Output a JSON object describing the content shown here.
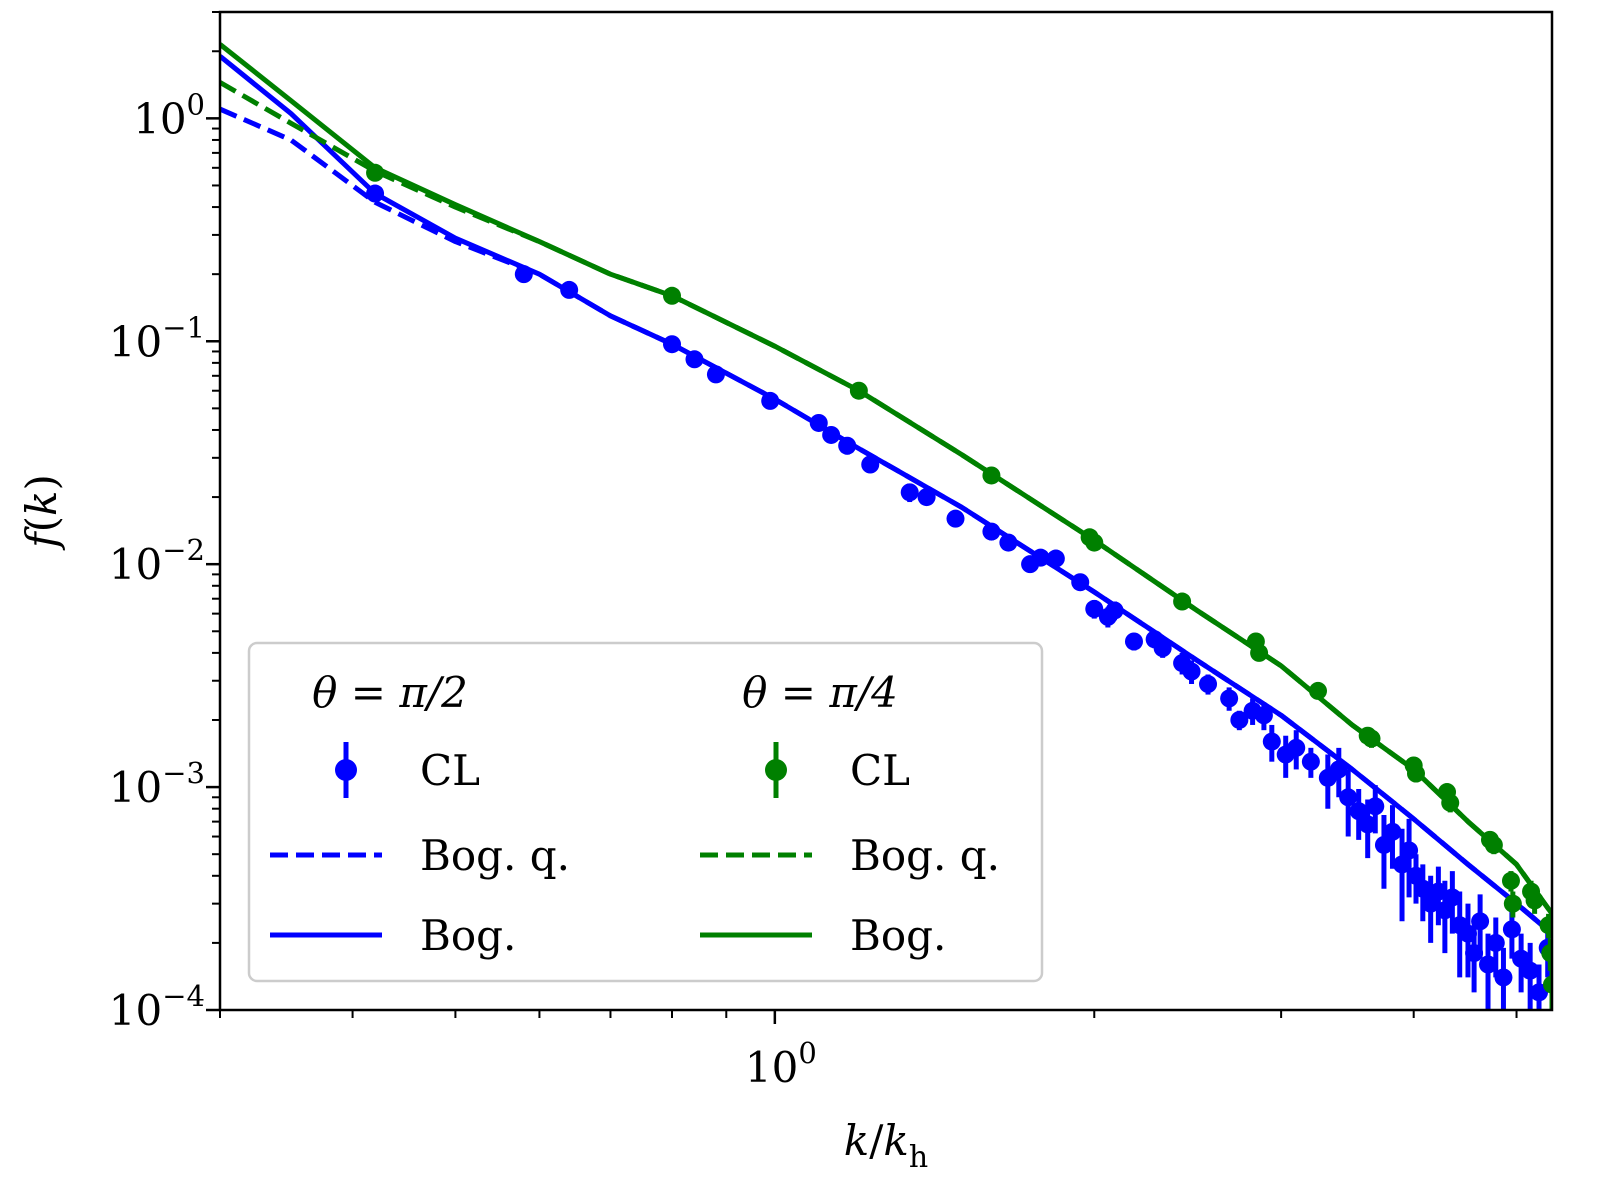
{
  "chart_data": {
    "type": "scatter",
    "title": "",
    "xlabel": "k/k_h",
    "ylabel": "f(k)",
    "xscale": "log",
    "yscale": "log",
    "xlim": [
      0.3,
      5.4
    ],
    "ylim": [
      0.0001,
      3.0
    ],
    "grid": false,
    "legend_position": "lower-left",
    "x_tick_labels": [
      {
        "value": 1,
        "mantissa": "10",
        "exponent": "0"
      }
    ],
    "y_tick_labels": [
      {
        "value": 1,
        "mantissa": "10",
        "exponent": "0"
      },
      {
        "value": 0.1,
        "mantissa": "10",
        "exponent": "−1"
      },
      {
        "value": 0.01,
        "mantissa": "10",
        "exponent": "−2"
      },
      {
        "value": 0.001,
        "mantissa": "10",
        "exponent": "−3"
      },
      {
        "value": 0.0001,
        "mantissa": "10",
        "exponent": "−4"
      }
    ],
    "legend": {
      "columns": [
        {
          "header": "θ = π/2",
          "color": "#0000ff"
        },
        {
          "header": "θ = π/4",
          "color": "#008000"
        }
      ],
      "entries": [
        {
          "label": "CL",
          "style": "errorbar"
        },
        {
          "label": "Bog. q.",
          "style": "dashed"
        },
        {
          "label": "Bog.",
          "style": "solid"
        }
      ]
    },
    "series": [
      {
        "name": "θ = π/2 CL",
        "color": "#0000ff",
        "kind": "points",
        "points": [
          [
            0.42,
            0.46,
            0.03
          ],
          [
            0.58,
            0.2,
            0.01
          ],
          [
            0.64,
            0.17,
            0.01
          ],
          [
            0.8,
            0.097,
            0.006
          ],
          [
            0.84,
            0.083,
            0.005
          ],
          [
            0.88,
            0.071,
            0.005
          ],
          [
            0.99,
            0.054,
            0.004
          ],
          [
            1.1,
            0.043,
            0.003
          ],
          [
            1.13,
            0.038,
            0.003
          ],
          [
            1.17,
            0.034,
            0.003
          ],
          [
            1.23,
            0.028,
            0.002
          ],
          [
            1.34,
            0.021,
            0.002
          ],
          [
            1.39,
            0.02,
            0.0015
          ],
          [
            1.48,
            0.016,
            0.0012
          ],
          [
            1.6,
            0.014,
            0.0012
          ],
          [
            1.66,
            0.0125,
            0.001
          ],
          [
            1.74,
            0.01,
            0.0008
          ],
          [
            1.78,
            0.0107,
            0.0008
          ],
          [
            1.84,
            0.0106,
            0.0008
          ],
          [
            1.94,
            0.0083,
            0.0007
          ],
          [
            2.0,
            0.0063,
            0.0006
          ],
          [
            2.06,
            0.0058,
            0.0006
          ],
          [
            2.09,
            0.0062,
            0.0006
          ],
          [
            2.18,
            0.0045,
            0.0004
          ],
          [
            2.28,
            0.0046,
            0.0004
          ],
          [
            2.32,
            0.0042,
            0.0004
          ],
          [
            2.42,
            0.0036,
            0.0004
          ],
          [
            2.47,
            0.0033,
            0.0004
          ],
          [
            2.56,
            0.0029,
            0.0003
          ],
          [
            2.68,
            0.0025,
            0.0003
          ],
          [
            2.74,
            0.002,
            0.0002
          ],
          [
            2.82,
            0.0022,
            0.0003
          ],
          [
            2.89,
            0.0021,
            0.0003
          ],
          [
            2.94,
            0.0016,
            0.0003
          ],
          [
            3.03,
            0.0014,
            0.0003
          ],
          [
            3.1,
            0.0015,
            0.0003
          ],
          [
            3.2,
            0.0013,
            0.0002
          ],
          [
            3.32,
            0.0011,
            0.0003
          ],
          [
            3.4,
            0.0012,
            0.0003
          ],
          [
            3.47,
            0.0009,
            0.0003
          ],
          [
            3.55,
            0.00078,
            0.0002
          ],
          [
            3.62,
            0.00068,
            0.0002
          ],
          [
            3.68,
            0.00082,
            0.0002
          ],
          [
            3.75,
            0.00055,
            0.0002
          ],
          [
            3.82,
            0.00063,
            0.0002
          ],
          [
            3.9,
            0.00045,
            0.0002
          ],
          [
            3.96,
            0.00052,
            0.0002
          ],
          [
            4.02,
            0.0004,
            0.0001
          ],
          [
            4.08,
            0.00035,
            0.0001
          ],
          [
            4.15,
            0.0003,
            0.0001
          ],
          [
            4.22,
            0.00034,
            0.0001
          ],
          [
            4.28,
            0.00028,
            0.0001
          ],
          [
            4.35,
            0.00032,
            0.0001
          ],
          [
            4.42,
            0.00024,
            0.0001
          ],
          [
            4.5,
            0.00022,
            8e-05
          ],
          [
            4.56,
            0.00018,
            6e-05
          ],
          [
            4.62,
            0.00025,
            8e-05
          ],
          [
            4.7,
            0.00016,
            6e-05
          ],
          [
            4.78,
            0.0002,
            6e-05
          ],
          [
            4.86,
            0.00014,
            5e-05
          ],
          [
            4.95,
            0.00023,
            6e-05
          ],
          [
            5.05,
            0.00017,
            5e-05
          ],
          [
            5.15,
            0.00015,
            5e-05
          ],
          [
            5.25,
            0.00012,
            4e-05
          ],
          [
            5.35,
            0.00019,
            5e-05
          ]
        ]
      },
      {
        "name": "θ = π/4 CL",
        "color": "#008000",
        "kind": "points",
        "points": [
          [
            0.42,
            0.57,
            0.03
          ],
          [
            0.8,
            0.16,
            0.008
          ],
          [
            1.2,
            0.06,
            0.003
          ],
          [
            1.6,
            0.025,
            0.0015
          ],
          [
            1.98,
            0.0132,
            0.0008
          ],
          [
            2.0,
            0.0125,
            0.0008
          ],
          [
            2.42,
            0.0068,
            0.0005
          ],
          [
            2.84,
            0.0045,
            0.0003
          ],
          [
            2.86,
            0.004,
            0.0003
          ],
          [
            3.25,
            0.0027,
            0.0002
          ],
          [
            3.62,
            0.0017,
            0.00015
          ],
          [
            3.65,
            0.00165,
            0.00015
          ],
          [
            4.0,
            0.00125,
            0.0001
          ],
          [
            4.02,
            0.00115,
            0.0001
          ],
          [
            4.3,
            0.00095,
            8e-05
          ],
          [
            4.33,
            0.00085,
            8e-05
          ],
          [
            4.72,
            0.00058,
            5e-05
          ],
          [
            4.76,
            0.00055,
            5e-05
          ],
          [
            4.94,
            0.00038,
            4e-05
          ],
          [
            4.96,
            0.0003,
            4e-05
          ],
          [
            5.16,
            0.00034,
            4e-05
          ],
          [
            5.2,
            0.00031,
            4e-05
          ],
          [
            5.36,
            0.00024,
            3e-05
          ],
          [
            5.38,
            0.00018,
            3e-05
          ],
          [
            5.4,
            0.00013,
            3e-05
          ]
        ]
      },
      {
        "name": "θ = π/2 Bog. q.",
        "color": "#0000ff",
        "kind": "dashed",
        "points": [
          [
            0.3,
            1.1
          ],
          [
            0.35,
            0.8
          ],
          [
            0.42,
            0.42
          ],
          [
            0.5,
            0.28
          ],
          [
            0.6,
            0.2
          ],
          [
            0.7,
            0.13
          ],
          [
            0.8,
            0.097
          ],
          [
            1.0,
            0.055
          ],
          [
            1.2,
            0.033
          ],
          [
            1.5,
            0.018
          ],
          [
            2.0,
            0.0075
          ],
          [
            2.5,
            0.0037
          ],
          [
            3.0,
            0.0021
          ],
          [
            3.5,
            0.0012
          ],
          [
            4.0,
            0.00072
          ],
          [
            4.5,
            0.00045
          ],
          [
            5.0,
            0.0003
          ],
          [
            5.4,
            0.00022
          ]
        ]
      },
      {
        "name": "θ = π/2 Bog.",
        "color": "#0000ff",
        "kind": "solid",
        "points": [
          [
            0.3,
            1.9
          ],
          [
            0.35,
            1.05
          ],
          [
            0.42,
            0.46
          ],
          [
            0.5,
            0.29
          ],
          [
            0.6,
            0.2
          ],
          [
            0.7,
            0.13
          ],
          [
            0.8,
            0.097
          ],
          [
            1.0,
            0.055
          ],
          [
            1.2,
            0.033
          ],
          [
            1.5,
            0.018
          ],
          [
            2.0,
            0.0075
          ],
          [
            2.5,
            0.0037
          ],
          [
            3.0,
            0.0021
          ],
          [
            3.5,
            0.0012
          ],
          [
            4.0,
            0.00072
          ],
          [
            4.5,
            0.00045
          ],
          [
            5.0,
            0.0003
          ],
          [
            5.4,
            0.00022
          ]
        ]
      },
      {
        "name": "θ = π/4 Bog. q.",
        "color": "#008000",
        "kind": "dashed",
        "points": [
          [
            0.3,
            1.45
          ],
          [
            0.35,
            0.95
          ],
          [
            0.42,
            0.58
          ],
          [
            0.5,
            0.4
          ],
          [
            0.6,
            0.28
          ],
          [
            0.7,
            0.2
          ],
          [
            0.8,
            0.16
          ],
          [
            1.0,
            0.095
          ],
          [
            1.2,
            0.06
          ],
          [
            1.5,
            0.031
          ],
          [
            2.0,
            0.0128
          ],
          [
            2.5,
            0.0062
          ],
          [
            3.0,
            0.0035
          ],
          [
            3.5,
            0.0019
          ],
          [
            4.0,
            0.0012
          ],
          [
            4.5,
            0.0007
          ],
          [
            5.0,
            0.00045
          ],
          [
            5.4,
            0.00027
          ]
        ]
      },
      {
        "name": "θ = π/4 Bog.",
        "color": "#008000",
        "kind": "solid",
        "points": [
          [
            0.3,
            2.15
          ],
          [
            0.35,
            1.2
          ],
          [
            0.42,
            0.6
          ],
          [
            0.5,
            0.41
          ],
          [
            0.6,
            0.28
          ],
          [
            0.7,
            0.2
          ],
          [
            0.8,
            0.16
          ],
          [
            1.0,
            0.095
          ],
          [
            1.2,
            0.06
          ],
          [
            1.5,
            0.031
          ],
          [
            2.0,
            0.0128
          ],
          [
            2.5,
            0.0062
          ],
          [
            3.0,
            0.0035
          ],
          [
            3.5,
            0.0019
          ],
          [
            4.0,
            0.0012
          ],
          [
            4.5,
            0.0007
          ],
          [
            5.0,
            0.00045
          ],
          [
            5.4,
            0.00027
          ]
        ]
      }
    ]
  }
}
